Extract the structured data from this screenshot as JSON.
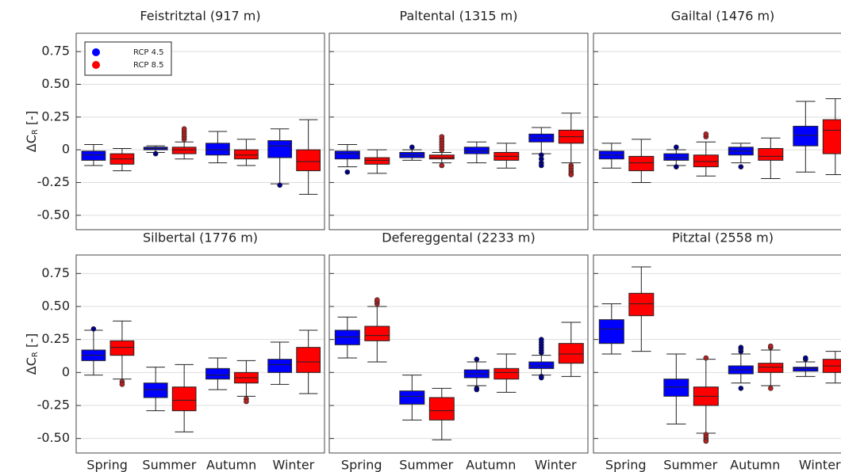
{
  "chart_data": [
    {
      "type": "box",
      "title": "Feistritztal (917 m)",
      "ylabel": [
        "ΔC",
        "R",
        " [-]"
      ],
      "categories": [
        null,
        null,
        null,
        null
      ],
      "ylim": [
        -0.61,
        0.89
      ],
      "yticks": [
        {
          "value": -0.5,
          "label": "-0.50"
        },
        -0.25,
        0,
        0.25,
        {
          "value": 0.5,
          "label": "0.50"
        },
        0.75
      ],
      "show_ytick_labels": true,
      "grid": true,
      "legend": "upper left",
      "series": [
        {
          "name": "RCP 4.5",
          "color": "#0000ff",
          "values": [
            {
              "min": -0.12,
              "q1": -0.08,
              "median": -0.04,
              "q3": -0.01,
              "max": 0.04
            },
            {
              "min": -0.02,
              "q1": 0,
              "median": 0.01,
              "q3": 0.02,
              "max": 0.03,
              "outliers": [
                -0.03
              ]
            },
            {
              "min": -0.1,
              "q1": -0.04,
              "median": 0,
              "q3": 0.05,
              "max": 0.14
            },
            {
              "min": -0.26,
              "q1": -0.06,
              "median": 0.03,
              "q3": 0.07,
              "max": 0.16,
              "outliers": [
                -0.27
              ]
            }
          ]
        },
        {
          "name": "RCP 8.5",
          "color": "#ff0000",
          "values": [
            {
              "min": -0.16,
              "q1": -0.11,
              "median": -0.07,
              "q3": -0.03,
              "max": 0.01
            },
            {
              "min": -0.07,
              "q1": -0.03,
              "median": 0,
              "q3": 0.02,
              "max": 0.06,
              "outliers": [
                0.08,
                0.1,
                0.12,
                0.14,
                0.16
              ]
            },
            {
              "min": -0.12,
              "q1": -0.07,
              "median": -0.04,
              "q3": 0,
              "max": 0.08
            },
            {
              "min": -0.34,
              "q1": -0.16,
              "median": -0.09,
              "q3": 0,
              "max": 0.23
            }
          ]
        }
      ]
    },
    {
      "type": "box",
      "title": "Paltental (1315 m)",
      "categories": [
        null,
        null,
        null,
        null
      ],
      "ylim": [
        -0.61,
        0.89
      ],
      "yticks": [
        -0.5,
        -0.25,
        0,
        0.25,
        0.5,
        0.75
      ],
      "show_ytick_labels": false,
      "grid": true,
      "series": [
        {
          "color": "#0000ff",
          "values": [
            {
              "min": -0.13,
              "q1": -0.07,
              "median": -0.03,
              "q3": -0.01,
              "max": 0.04,
              "outliers": [
                -0.17
              ]
            },
            {
              "min": -0.08,
              "q1": -0.06,
              "median": -0.04,
              "q3": -0.02,
              "max": 0,
              "outliers": [
                0.02
              ]
            },
            {
              "min": -0.1,
              "q1": -0.03,
              "median": -0.01,
              "q3": 0.02,
              "max": 0.06
            },
            {
              "min": -0.03,
              "q1": 0.06,
              "median": 0.09,
              "q3": 0.12,
              "max": 0.17,
              "outliers": [
                -0.04,
                -0.07,
                -0.1,
                -0.12
              ]
            }
          ]
        },
        {
          "color": "#ff0000",
          "values": [
            {
              "min": -0.18,
              "q1": -0.11,
              "median": -0.08,
              "q3": -0.06,
              "max": 0
            },
            {
              "min": -0.1,
              "q1": -0.07,
              "median": -0.06,
              "q3": -0.04,
              "max": -0.02,
              "outliers": [
                0,
                0.02,
                0.04,
                0.06,
                0.08,
                0.1,
                -0.12
              ]
            },
            {
              "min": -0.14,
              "q1": -0.08,
              "median": -0.05,
              "q3": -0.02,
              "max": 0.05
            },
            {
              "min": -0.1,
              "q1": 0.05,
              "median": 0.1,
              "q3": 0.15,
              "max": 0.28,
              "outliers": [
                -0.12,
                -0.14,
                -0.16,
                -0.18,
                -0.19
              ]
            }
          ]
        }
      ]
    },
    {
      "type": "box",
      "title": "Gailtal (1476 m)",
      "categories": [
        null,
        null,
        null,
        null
      ],
      "ylim": [
        -0.61,
        0.89
      ],
      "yticks": [
        -0.5,
        -0.25,
        0,
        0.25,
        0.5,
        0.75
      ],
      "show_ytick_labels": false,
      "grid": true,
      "series": [
        {
          "color": "#0000ff",
          "values": [
            {
              "min": -0.14,
              "q1": -0.07,
              "median": -0.04,
              "q3": -0.01,
              "max": 0.05
            },
            {
              "min": -0.12,
              "q1": -0.08,
              "median": -0.06,
              "q3": -0.03,
              "max": 0,
              "outliers": [
                0.02,
                -0.13
              ]
            },
            {
              "min": -0.1,
              "q1": -0.04,
              "median": -0.01,
              "q3": 0.02,
              "max": 0.05,
              "outliers": [
                -0.13
              ]
            },
            {
              "min": -0.17,
              "q1": 0.03,
              "median": 0.11,
              "q3": 0.18,
              "max": 0.37
            }
          ]
        },
        {
          "color": "#ff0000",
          "values": [
            {
              "min": -0.25,
              "q1": -0.16,
              "median": -0.1,
              "q3": -0.05,
              "max": 0.08
            },
            {
              "min": -0.2,
              "q1": -0.13,
              "median": -0.09,
              "q3": -0.04,
              "max": 0.06,
              "outliers": [
                0.1,
                0.12
              ]
            },
            {
              "min": -0.22,
              "q1": -0.08,
              "median": -0.05,
              "q3": 0.01,
              "max": 0.09
            },
            {
              "min": -0.19,
              "q1": -0.03,
              "median": 0.15,
              "q3": 0.23,
              "max": 0.39
            }
          ]
        }
      ]
    },
    {
      "type": "box",
      "title": "Silbertal (1776 m)",
      "ylabel": [
        "ΔC",
        "R",
        " [-]"
      ],
      "categories": [
        "Spring",
        "Summer",
        "Autumn",
        "Winter"
      ],
      "ylim": [
        -0.61,
        0.89
      ],
      "yticks": [
        {
          "value": -0.5,
          "label": "-0.50"
        },
        -0.25,
        0,
        0.25,
        {
          "value": 0.5,
          "label": "0.50"
        },
        0.75
      ],
      "show_ytick_labels": true,
      "grid": true,
      "series": [
        {
          "color": "#0000ff",
          "values": [
            {
              "min": -0.02,
              "q1": 0.09,
              "median": 0.13,
              "q3": 0.17,
              "max": 0.32,
              "outliers": [
                0.33
              ]
            },
            {
              "min": -0.29,
              "q1": -0.19,
              "median": -0.13,
              "q3": -0.08,
              "max": 0.04
            },
            {
              "min": -0.13,
              "q1": -0.05,
              "median": -0.02,
              "q3": 0.03,
              "max": 0.11
            },
            {
              "min": -0.09,
              "q1": 0,
              "median": 0.06,
              "q3": 0.1,
              "max": 0.23
            }
          ]
        },
        {
          "color": "#ff0000",
          "values": [
            {
              "min": -0.05,
              "q1": 0.13,
              "median": 0.19,
              "q3": 0.24,
              "max": 0.39,
              "outliers": [
                -0.07,
                -0.09
              ]
            },
            {
              "min": -0.45,
              "q1": -0.29,
              "median": -0.21,
              "q3": -0.11,
              "max": 0.06
            },
            {
              "min": -0.18,
              "q1": -0.08,
              "median": -0.04,
              "q3": 0,
              "max": 0.09,
              "outliers": [
                -0.2,
                -0.22
              ]
            },
            {
              "min": -0.16,
              "q1": 0,
              "median": 0.08,
              "q3": 0.19,
              "max": 0.32
            }
          ]
        }
      ]
    },
    {
      "type": "box",
      "title": "Defereggental (2233 m)",
      "categories": [
        "Spring",
        "Summer",
        "Autumn",
        "Winter"
      ],
      "ylim": [
        -0.61,
        0.89
      ],
      "yticks": [
        -0.5,
        -0.25,
        0,
        0.25,
        0.5,
        0.75
      ],
      "show_ytick_labels": false,
      "grid": true,
      "series": [
        {
          "color": "#0000ff",
          "values": [
            {
              "min": 0.11,
              "q1": 0.21,
              "median": 0.27,
              "q3": 0.32,
              "max": 0.42
            },
            {
              "min": -0.36,
              "q1": -0.24,
              "median": -0.18,
              "q3": -0.14,
              "max": -0.02
            },
            {
              "min": -0.1,
              "q1": -0.04,
              "median": -0.01,
              "q3": 0.02,
              "max": 0.08,
              "outliers": [
                0.1,
                -0.12,
                -0.13
              ]
            },
            {
              "min": -0.02,
              "q1": 0.03,
              "median": 0.05,
              "q3": 0.08,
              "max": 0.13,
              "outliers": [
                0.15,
                0.17,
                0.19,
                0.21,
                0.23,
                0.25,
                -0.03,
                -0.04
              ]
            }
          ]
        },
        {
          "color": "#ff0000",
          "values": [
            {
              "min": 0.08,
              "q1": 0.24,
              "median": 0.28,
              "q3": 0.35,
              "max": 0.5,
              "outliers": [
                0.52,
                0.54,
                0.55
              ]
            },
            {
              "min": -0.51,
              "q1": -0.36,
              "median": -0.29,
              "q3": -0.19,
              "max": -0.12
            },
            {
              "min": -0.15,
              "q1": -0.05,
              "median": 0,
              "q3": 0.03,
              "max": 0.14
            },
            {
              "min": -0.03,
              "q1": 0.07,
              "median": 0.14,
              "q3": 0.22,
              "max": 0.38
            }
          ]
        }
      ]
    },
    {
      "type": "box",
      "title": "Pitztal (2558 m)",
      "categories": [
        "Spring",
        "Summer",
        "Autumn",
        "Winter"
      ],
      "ylim": [
        -0.61,
        0.89
      ],
      "yticks": [
        -0.5,
        -0.25,
        0,
        0.25,
        0.5,
        0.75
      ],
      "show_ytick_labels": false,
      "grid": true,
      "series": [
        {
          "color": "#0000ff",
          "values": [
            {
              "min": 0.14,
              "q1": 0.22,
              "median": 0.33,
              "q3": 0.4,
              "max": 0.52
            },
            {
              "min": -0.39,
              "q1": -0.18,
              "median": -0.11,
              "q3": -0.05,
              "max": 0.14
            },
            {
              "min": -0.08,
              "q1": -0.01,
              "median": 0.02,
              "q3": 0.05,
              "max": 0.14,
              "outliers": [
                0.16,
                0.18,
                0.19,
                -0.12
              ]
            },
            {
              "min": -0.03,
              "q1": 0.01,
              "median": 0.03,
              "q3": 0.04,
              "max": 0.08,
              "outliers": [
                0.1,
                0.11
              ]
            }
          ]
        },
        {
          "color": "#ff0000",
          "values": [
            {
              "min": 0.16,
              "q1": 0.43,
              "median": 0.52,
              "q3": 0.6,
              "max": 0.8
            },
            {
              "min": -0.46,
              "q1": -0.25,
              "median": -0.18,
              "q3": -0.11,
              "max": 0.1,
              "outliers": [
                0.11,
                -0.47,
                -0.49,
                -0.51,
                -0.52
              ]
            },
            {
              "min": -0.1,
              "q1": 0,
              "median": 0.04,
              "q3": 0.07,
              "max": 0.17,
              "outliers": [
                0.19,
                0.2,
                -0.12
              ]
            },
            {
              "min": -0.08,
              "q1": 0,
              "median": 0.05,
              "q3": 0.1,
              "max": 0.16
            }
          ]
        }
      ]
    }
  ]
}
